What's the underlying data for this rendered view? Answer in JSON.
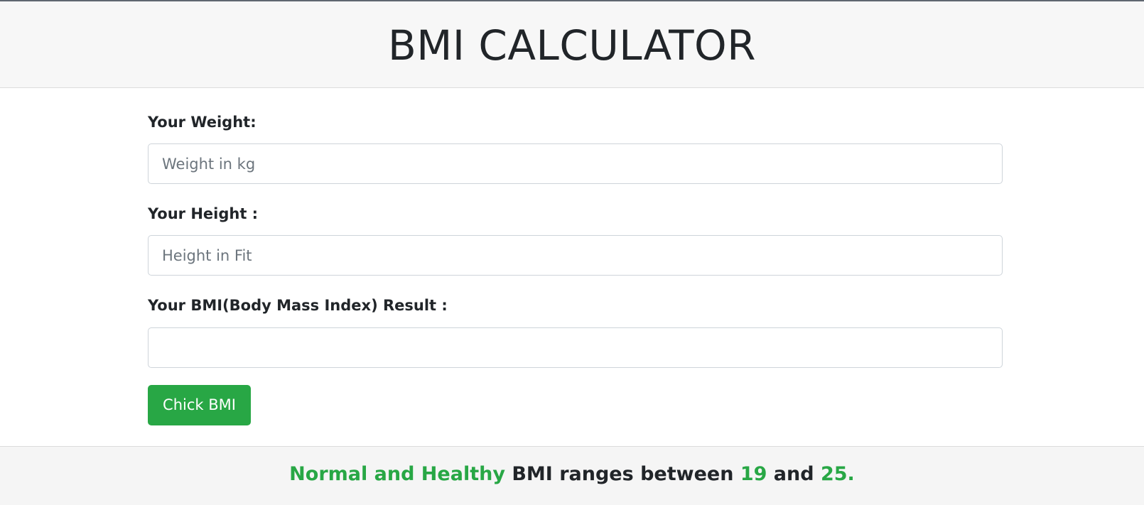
{
  "header": {
    "title": "BMI CALCULATOR"
  },
  "form": {
    "weight_label": "Your Weight:",
    "weight_placeholder": "Weight in kg",
    "weight_value": "",
    "height_label": "Your Height :",
    "height_placeholder": "Height in Fit",
    "height_value": "",
    "result_label": "Your BMI(Body Mass Index) Result :",
    "result_value": "",
    "submit_label": "Chick BMI"
  },
  "footer": {
    "highlight": "Normal and Healthy",
    "middle": " BMI ranges between ",
    "min": "19",
    "and": " and ",
    "max": "25."
  },
  "colors": {
    "accent": "#28a745",
    "text": "#212529",
    "header_bg": "#f7f7f7"
  }
}
